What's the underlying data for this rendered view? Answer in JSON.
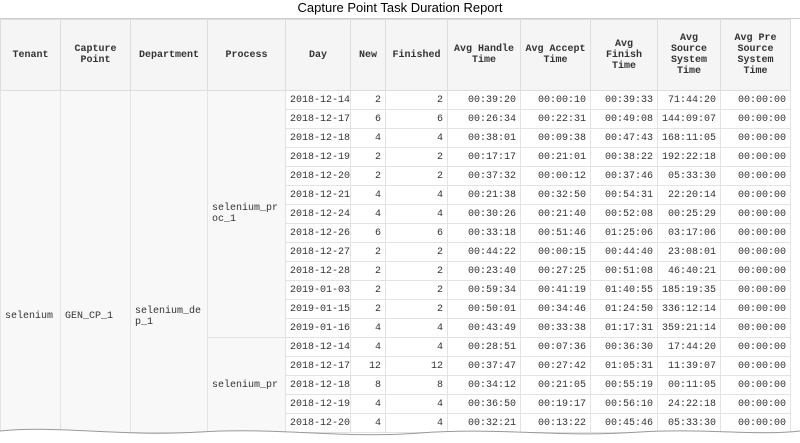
{
  "title": "Capture Point Task Duration Report",
  "headers": [
    "Tenant",
    "Capture Point",
    "Department",
    "Process",
    "Day",
    "New",
    "Finished",
    "Avg Handle Time",
    "Avg Accept Time",
    "Avg Finish Time",
    "Avg Source System Time",
    "Avg Pre Source System Time"
  ],
  "tenant": "selenium",
  "capture_point": "GEN_CP_1",
  "department": "selenium_dep_1",
  "groups": [
    {
      "process": "selenium_proc_1",
      "rows": [
        [
          "2018-12-14",
          "2",
          "2",
          "00:39:20",
          "00:00:10",
          "00:39:33",
          "71:44:20",
          "00:00:00"
        ],
        [
          "2018-12-17",
          "6",
          "6",
          "00:26:34",
          "00:22:31",
          "00:49:08",
          "144:09:07",
          "00:00:00"
        ],
        [
          "2018-12-18",
          "4",
          "4",
          "00:38:01",
          "00:09:38",
          "00:47:43",
          "168:11:05",
          "00:00:00"
        ],
        [
          "2018-12-19",
          "2",
          "2",
          "00:17:17",
          "00:21:01",
          "00:38:22",
          "192:22:18",
          "00:00:00"
        ],
        [
          "2018-12-20",
          "2",
          "2",
          "00:37:32",
          "00:00:12",
          "00:37:46",
          "05:33:30",
          "00:00:00"
        ],
        [
          "2018-12-21",
          "4",
          "4",
          "00:21:38",
          "00:32:50",
          "00:54:31",
          "22:20:14",
          "00:00:00"
        ],
        [
          "2018-12-24",
          "4",
          "4",
          "00:30:26",
          "00:21:40",
          "00:52:08",
          "00:25:29",
          "00:00:00"
        ],
        [
          "2018-12-26",
          "6",
          "6",
          "00:33:18",
          "00:51:46",
          "01:25:06",
          "03:17:06",
          "00:00:00"
        ],
        [
          "2018-12-27",
          "2",
          "2",
          "00:44:22",
          "00:00:15",
          "00:44:40",
          "23:08:01",
          "00:00:00"
        ],
        [
          "2018-12-28",
          "2",
          "2",
          "00:23:40",
          "00:27:25",
          "00:51:08",
          "46:40:21",
          "00:00:00"
        ],
        [
          "2019-01-03",
          "2",
          "2",
          "00:59:34",
          "00:41:19",
          "01:40:55",
          "185:19:35",
          "00:00:00"
        ],
        [
          "2019-01-15",
          "2",
          "2",
          "00:50:01",
          "00:34:46",
          "01:24:50",
          "336:12:14",
          "00:00:00"
        ],
        [
          "2019-01-16",
          "4",
          "4",
          "00:43:49",
          "00:33:38",
          "01:17:31",
          "359:21:14",
          "00:00:00"
        ]
      ]
    },
    {
      "process": "selenium_pr",
      "rows": [
        [
          "2018-12-14",
          "4",
          "4",
          "00:28:51",
          "00:07:36",
          "00:36:30",
          "17:44:20",
          "00:00:00"
        ],
        [
          "2018-12-17",
          "12",
          "12",
          "00:37:47",
          "00:27:42",
          "01:05:31",
          "11:39:07",
          "00:00:00"
        ],
        [
          "2018-12-18",
          "8",
          "8",
          "00:34:12",
          "00:21:05",
          "00:55:19",
          "00:11:05",
          "00:00:00"
        ],
        [
          "2018-12-19",
          "4",
          "4",
          "00:36:50",
          "00:19:17",
          "00:56:10",
          "24:22:18",
          "00:00:00"
        ],
        [
          "2018-12-20",
          "4",
          "4",
          "00:32:21",
          "00:13:22",
          "00:45:46",
          "05:33:30",
          "00:00:00"
        ]
      ]
    }
  ]
}
